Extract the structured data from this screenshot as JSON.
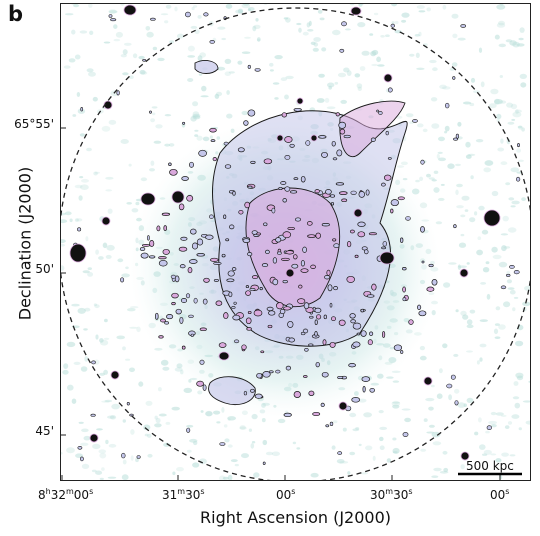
{
  "panel_letter": "b",
  "axes": {
    "xlabel": "Right Ascension (J2000)",
    "ylabel": "Declination (J2000)",
    "xticks": [
      {
        "h": "8",
        "hu": "h",
        "m": "32",
        "mu": "m",
        "s": "00",
        "su": "s"
      },
      {
        "m": "31",
        "mu": "m",
        "s": "30",
        "su": "s"
      },
      {
        "s": "00",
        "su": "s"
      },
      {
        "m": "30",
        "mu": "m",
        "s": "30",
        "su": "s"
      },
      {
        "s": "00",
        "su": "s"
      }
    ],
    "yticks": [
      "65°55'",
      "50'",
      "45'"
    ]
  },
  "scalebar": {
    "label": "500 kpc"
  },
  "colors": {
    "faint_emission": "#b8ded9",
    "diffuse_mid": "#c4c6ea",
    "diffuse_peak": "#d9a8dc",
    "contour": "#1a1a1a",
    "circle": "#222222"
  }
}
